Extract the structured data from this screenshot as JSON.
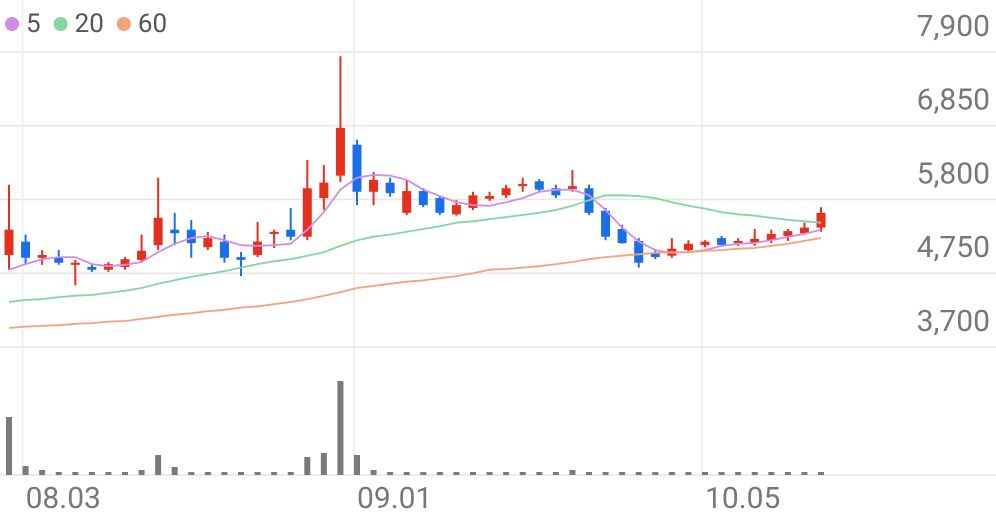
{
  "chart_data": {
    "type": "candlestick",
    "categories": [
      null,
      "08.03",
      null,
      null,
      null,
      null,
      null,
      null,
      null,
      null,
      null,
      null,
      null,
      null,
      null,
      null,
      null,
      null,
      null,
      null,
      null,
      "09.01",
      null,
      null,
      null,
      null,
      null,
      null,
      null,
      null,
      null,
      null,
      null,
      null,
      null,
      null,
      null,
      null,
      null,
      null,
      null,
      null,
      "10.05",
      null,
      null,
      null,
      null,
      null,
      null,
      null
    ],
    "open": [
      5010,
      5200,
      4970,
      4980,
      4870,
      4840,
      4800,
      4840,
      4940,
      5150,
      5370,
      5370,
      5120,
      5200,
      4980,
      5010,
      5310,
      5370,
      5270,
      5820,
      6140,
      6580,
      5910,
      6040,
      5610,
      5920,
      5820,
      5590,
      5680,
      5810,
      5860,
      5990,
      6060,
      5960,
      5950,
      5960,
      5640,
      5380,
      5210,
      5040,
      5000,
      5080,
      5150,
      5250,
      5180,
      5180,
      5220,
      5280,
      5320,
      5400
    ],
    "high": [
      6010,
      5300,
      5080,
      5080,
      4940,
      4880,
      4910,
      4980,
      5300,
      6110,
      5610,
      5510,
      5340,
      5300,
      5050,
      5480,
      5370,
      5680,
      6360,
      6290,
      7840,
      6650,
      6190,
      6110,
      6080,
      5960,
      5850,
      5790,
      5910,
      5910,
      6010,
      6110,
      6090,
      6010,
      6220,
      6010,
      5680,
      5440,
      5250,
      5080,
      5250,
      5220,
      5220,
      5280,
      5250,
      5380,
      5370,
      5380,
      5470,
      5690
    ],
    "low": [
      4800,
      4870,
      4870,
      4870,
      4580,
      4770,
      4770,
      4800,
      4910,
      5080,
      5150,
      4970,
      5080,
      4900,
      4710,
      4980,
      5110,
      5220,
      5220,
      5650,
      6050,
      5720,
      5720,
      5840,
      5580,
      5690,
      5580,
      5570,
      5650,
      5780,
      5820,
      5910,
      5910,
      5820,
      5910,
      5580,
      5220,
      5170,
      4830,
      4950,
      4970,
      5050,
      5120,
      5140,
      5140,
      5140,
      5180,
      5210,
      5300,
      5340
    ],
    "close": [
      5370,
      4970,
      5010,
      4900,
      4900,
      4800,
      4880,
      4950,
      5070,
      5540,
      5320,
      5180,
      5250,
      4970,
      4940,
      5200,
      5340,
      5270,
      5960,
      6040,
      6820,
      5910,
      6080,
      5890,
      5920,
      5720,
      5610,
      5720,
      5860,
      5850,
      5960,
      6020,
      5940,
      5860,
      5990,
      5610,
      5270,
      5180,
      4900,
      4980,
      5100,
      5170,
      5200,
      5150,
      5210,
      5240,
      5310,
      5350,
      5400,
      5610
    ],
    "volume": [
      58,
      9,
      5,
      3,
      3,
      3,
      3,
      3,
      5,
      20,
      8,
      3,
      3,
      3,
      3,
      3,
      3,
      3,
      18,
      22,
      94,
      20,
      5,
      3,
      3,
      3,
      3,
      3,
      3,
      3,
      3,
      3,
      3,
      3,
      5,
      3,
      3,
      3,
      3,
      3,
      3,
      3,
      3,
      3,
      3,
      3,
      3,
      3,
      3,
      3
    ],
    "volume_ylim": [
      0,
      128
    ],
    "up_color": "#e4301c",
    "down_color": "#1a6fe8",
    "volume_color": "#7a7a7a",
    "series": [
      {
        "name": "5",
        "color": "#d38be3",
        "values": [
          4800,
          4880,
          4950,
          4980,
          4980,
          4880,
          4850,
          4870,
          4910,
          5050,
          5170,
          5250,
          5280,
          5220,
          5150,
          5140,
          5150,
          5170,
          5370,
          5620,
          5940,
          6110,
          6150,
          6140,
          6080,
          5940,
          5850,
          5760,
          5720,
          5710,
          5760,
          5820,
          5910,
          5940,
          5940,
          5860,
          5650,
          5400,
          5200,
          5080,
          5040,
          5050,
          5080,
          5140,
          5170,
          5180,
          5220,
          5270,
          5310,
          5370
        ]
      },
      {
        "name": "20",
        "color": "#85d69e",
        "values": [
          4340,
          4370,
          4380,
          4410,
          4430,
          4440,
          4470,
          4500,
          4540,
          4600,
          4650,
          4700,
          4740,
          4780,
          4830,
          4880,
          4920,
          4950,
          5000,
          5050,
          5140,
          5220,
          5270,
          5300,
          5340,
          5380,
          5420,
          5470,
          5490,
          5520,
          5550,
          5580,
          5610,
          5650,
          5710,
          5790,
          5860,
          5860,
          5850,
          5820,
          5760,
          5710,
          5670,
          5620,
          5590,
          5570,
          5540,
          5510,
          5490,
          5470
        ]
      },
      {
        "name": "60",
        "color": "#f3a27c",
        "values": [
          3970,
          3990,
          4000,
          4010,
          4030,
          4040,
          4060,
          4070,
          4100,
          4130,
          4160,
          4180,
          4210,
          4230,
          4260,
          4280,
          4310,
          4340,
          4380,
          4430,
          4480,
          4540,
          4570,
          4600,
          4630,
          4650,
          4680,
          4710,
          4750,
          4800,
          4810,
          4830,
          4850,
          4880,
          4910,
          4950,
          4980,
          5000,
          5020,
          5040,
          5050,
          5050,
          5070,
          5080,
          5100,
          5110,
          5140,
          5170,
          5210,
          5250
        ]
      }
    ],
    "ylim": [
      3700,
      7900
    ],
    "yticks": [
      {
        "value": 3700,
        "label": "3,700"
      },
      {
        "value": 4750,
        "label": "4,750"
      },
      {
        "value": 5800,
        "label": "5,800"
      },
      {
        "value": 6850,
        "label": "6,850"
      },
      {
        "value": 7900,
        "label": "7,900"
      }
    ],
    "grid": true
  }
}
